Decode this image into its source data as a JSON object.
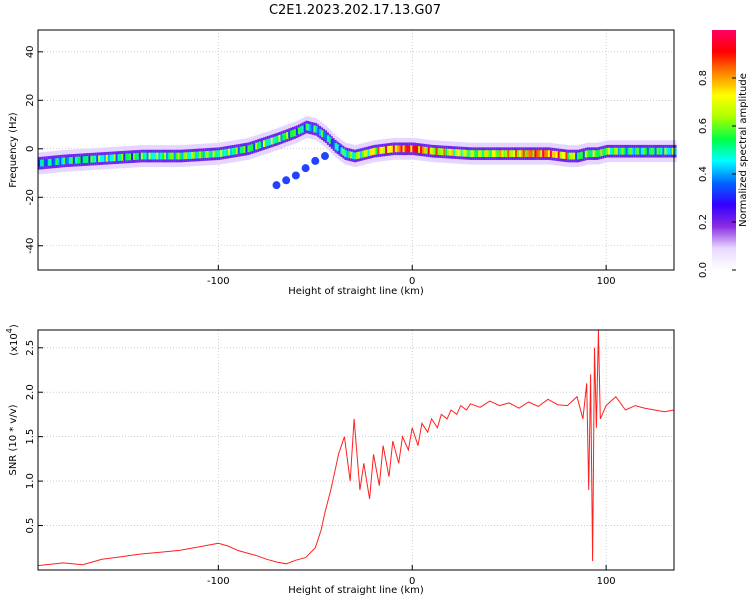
{
  "figure_title": "C2E1.2023.202.17.13.G07",
  "chart_data": [
    {
      "type": "heatmap",
      "title": "C2E1.2023.202.17.13.G07",
      "xlabel": "Height of straight line (km)",
      "ylabel": "Frequency (Hz)",
      "xlim": [
        -193,
        135
      ],
      "ylim": [
        -50,
        49
      ],
      "x_ticks": [
        -100,
        0,
        100
      ],
      "y_ticks": [
        40,
        20,
        0,
        -20,
        -40
      ],
      "grid": true,
      "colorbar": {
        "label": "Normalized spectral amplitude",
        "range": [
          0,
          1
        ],
        "ticks": [
          0.0,
          0.2,
          0.4,
          0.6,
          0.8
        ],
        "colormap": [
          "#ffffff",
          "#e8d8ff",
          "#8a2be2",
          "#3300ff",
          "#0066ff",
          "#00ffff",
          "#00ff44",
          "#aaff00",
          "#ffff00",
          "#ff8800",
          "#ff0000",
          "#ff0066"
        ]
      },
      "ridge": {
        "x": [
          -193,
          -180,
          -160,
          -140,
          -120,
          -100,
          -85,
          -70,
          -60,
          -55,
          -50,
          -45,
          -40,
          -35,
          -30,
          -25,
          -20,
          -10,
          0,
          10,
          30,
          50,
          70,
          80,
          85,
          90,
          95,
          100,
          110,
          120,
          135
        ],
        "y": [
          -6,
          -5,
          -4,
          -3,
          -3,
          -2,
          0,
          4,
          7,
          9,
          8,
          5,
          1,
          -2,
          -3,
          -2,
          -1,
          0,
          0,
          -1,
          -2,
          -2,
          -2,
          -3,
          -3,
          -2,
          -2,
          -1,
          -1,
          -1,
          -1
        ],
        "amplitude": [
          0.4,
          0.45,
          0.5,
          0.5,
          0.55,
          0.55,
          0.5,
          0.55,
          0.5,
          0.45,
          0.45,
          0.45,
          0.4,
          0.5,
          0.55,
          0.6,
          0.7,
          0.8,
          0.9,
          0.7,
          0.6,
          0.7,
          0.85,
          0.7,
          0.5,
          0.55,
          0.6,
          0.6,
          0.5,
          0.5,
          0.5
        ]
      },
      "side_branch": {
        "x": [
          -70,
          -65,
          -60,
          -55,
          -50,
          -45
        ],
        "y": [
          -15,
          -13,
          -11,
          -8,
          -5,
          -3
        ]
      }
    },
    {
      "type": "line",
      "xlabel": "Height of straight line (km)",
      "ylabel": "SNR (10 * v/v)",
      "y_multiplier_label": "(x10",
      "y_multiplier_exp": "4",
      "y_multiplier_close": ")",
      "xlim": [
        -193,
        135
      ],
      "ylim": [
        0,
        27000
      ],
      "x_ticks": [
        -100,
        0,
        100
      ],
      "y_ticks": [
        0.5,
        1.0,
        1.5,
        2.0,
        2.5
      ],
      "y_tick_labels": [
        "0.5",
        "1.0",
        "1.5",
        "2.0",
        "2.5"
      ],
      "grid": true,
      "series": [
        {
          "color": "#ff2020",
          "x": [
            -193,
            -180,
            -170,
            -160,
            -150,
            -140,
            -130,
            -120,
            -110,
            -100,
            -95,
            -90,
            -85,
            -80,
            -75,
            -70,
            -65,
            -60,
            -55,
            -50,
            -47,
            -45,
            -42,
            -40,
            -38,
            -35,
            -32,
            -30,
            -27,
            -25,
            -22,
            -20,
            -17,
            -15,
            -12,
            -10,
            -7,
            -5,
            -2,
            0,
            3,
            5,
            8,
            10,
            13,
            15,
            18,
            20,
            23,
            25,
            28,
            30,
            35,
            40,
            45,
            50,
            55,
            60,
            65,
            70,
            75,
            80,
            85,
            88,
            90,
            91,
            92,
            93,
            94,
            95,
            96,
            97,
            100,
            105,
            110,
            115,
            120,
            125,
            130,
            135
          ],
          "y": [
            500,
            800,
            600,
            1200,
            1500,
            1800,
            2000,
            2200,
            2600,
            3000,
            2700,
            2200,
            1900,
            1600,
            1200,
            900,
            700,
            1100,
            1400,
            2500,
            4500,
            6500,
            9000,
            11000,
            13000,
            15000,
            10000,
            17000,
            9000,
            12000,
            8000,
            13000,
            9500,
            14000,
            10500,
            14500,
            12000,
            15000,
            13500,
            16000,
            14000,
            16500,
            15500,
            17000,
            16000,
            17500,
            17000,
            18000,
            17500,
            18500,
            18000,
            18700,
            18300,
            19000,
            18500,
            18800,
            18200,
            18900,
            18400,
            19200,
            18600,
            18500,
            19500,
            17000,
            21000,
            9000,
            22000,
            1000,
            25000,
            16000,
            27000,
            17000,
            18500,
            19500,
            18000,
            18500,
            18200,
            18000,
            17800,
            18000
          ]
        }
      ]
    }
  ]
}
